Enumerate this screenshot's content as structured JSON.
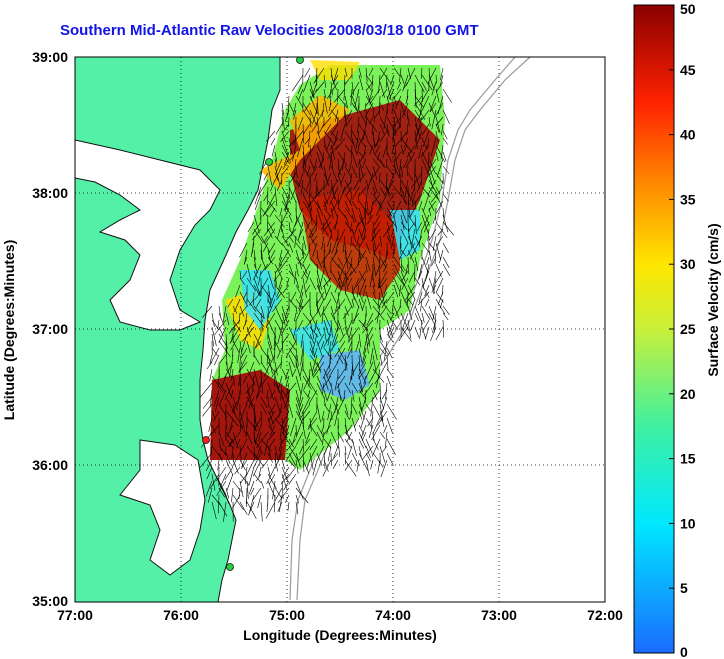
{
  "title": "Southern Mid-Atlantic Raw Velocities 2008/03/18 0100 GMT",
  "xlabel": "Longitude (Degrees:Minutes)",
  "ylabel": "Latitude (Degrees:Minutes)",
  "x_ticks": [
    "77:00",
    "76:00",
    "75:00",
    "74:00",
    "73:00",
    "72:00"
  ],
  "y_ticks": [
    "39:00",
    "38:00",
    "37:00",
    "36:00",
    "35:00"
  ],
  "colorbar": {
    "label": "Surface Velocity (cm/s)",
    "ticks": [
      "0",
      "5",
      "10",
      "15",
      "20",
      "25",
      "30",
      "35",
      "40",
      "45",
      "50"
    ],
    "min": 0,
    "max": 50
  },
  "colors": {
    "land": "#55f0a8",
    "coast": "#111111",
    "bathymetry": "#9a9a9a",
    "site_green": "#22d040",
    "site_red": "#ff1a1a",
    "title": "#1414e6"
  }
}
